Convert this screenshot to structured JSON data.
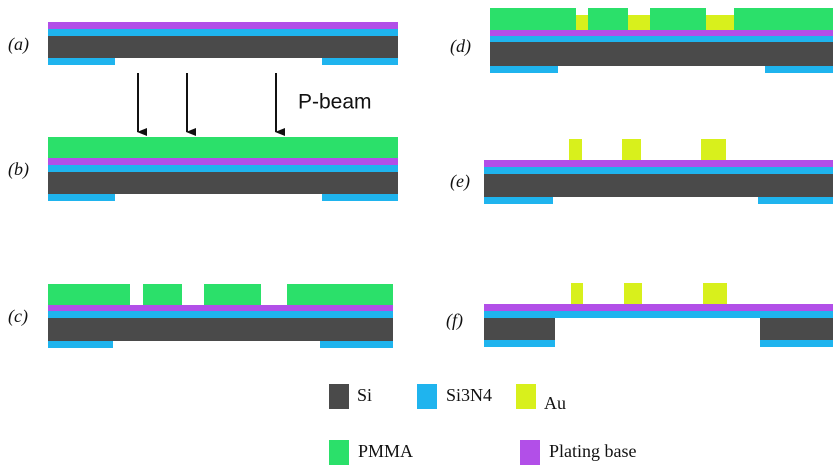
{
  "panels": [
    {
      "label": "(a)"
    },
    {
      "label": "(b)"
    },
    {
      "label": "(c)"
    },
    {
      "label": "(d)"
    },
    {
      "label": "(e)"
    },
    {
      "label": "(f)"
    }
  ],
  "beam_label": "P-beam",
  "legend": [
    {
      "label": "Si"
    },
    {
      "label": "Si3N4"
    },
    {
      "label": "Au"
    },
    {
      "label": "PMMA"
    },
    {
      "label": "Plating base"
    }
  ]
}
